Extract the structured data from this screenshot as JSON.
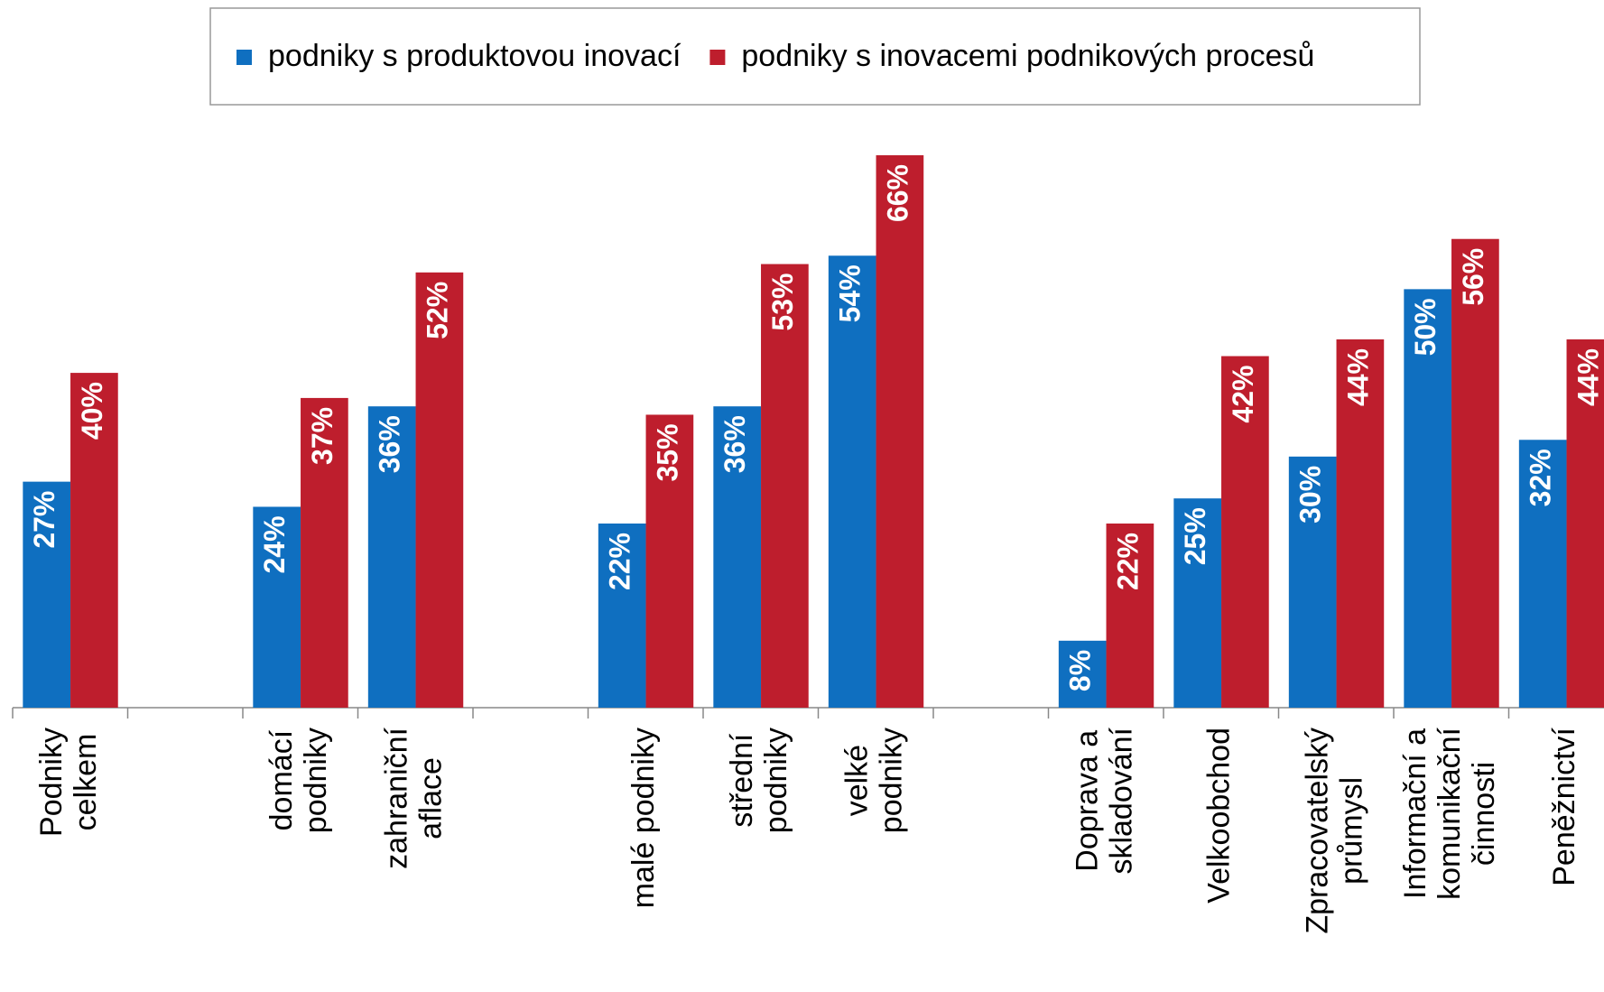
{
  "chart_data": {
    "type": "bar",
    "categories": [
      "Podniky celkem",
      null,
      "domácí podniky",
      "zahraniční aflace",
      null,
      "malé podniky",
      "střední podniky",
      "velké podniky",
      null,
      "Doprava a skladování",
      "Velkoobchod",
      "Zpracovatelský průmysl",
      "Informační a komunikační činnosti",
      "Peněžnictví"
    ],
    "series": [
      {
        "name": "podniky s produktovou inovací",
        "color": "#0f6fc0",
        "values": [
          27,
          null,
          24,
          36,
          null,
          22,
          36,
          54,
          null,
          8,
          25,
          30,
          50,
          32
        ],
        "value_labels": [
          "27%",
          null,
          "24%",
          "36%",
          null,
          "22%",
          "36%",
          "54%",
          null,
          "8%",
          "25%",
          "30%",
          "50%",
          "32%"
        ]
      },
      {
        "name": "podniky s inovacemi podnikových procesů",
        "color": "#be1e2d",
        "values": [
          40,
          null,
          37,
          52,
          null,
          35,
          53,
          66,
          null,
          22,
          42,
          44,
          56,
          44
        ],
        "value_labels": [
          "40%",
          null,
          "37%",
          "52%",
          null,
          "35%",
          "53%",
          "66%",
          null,
          "22%",
          "42%",
          "44%",
          "56%",
          "44%"
        ]
      }
    ],
    "legend": "top"
  }
}
